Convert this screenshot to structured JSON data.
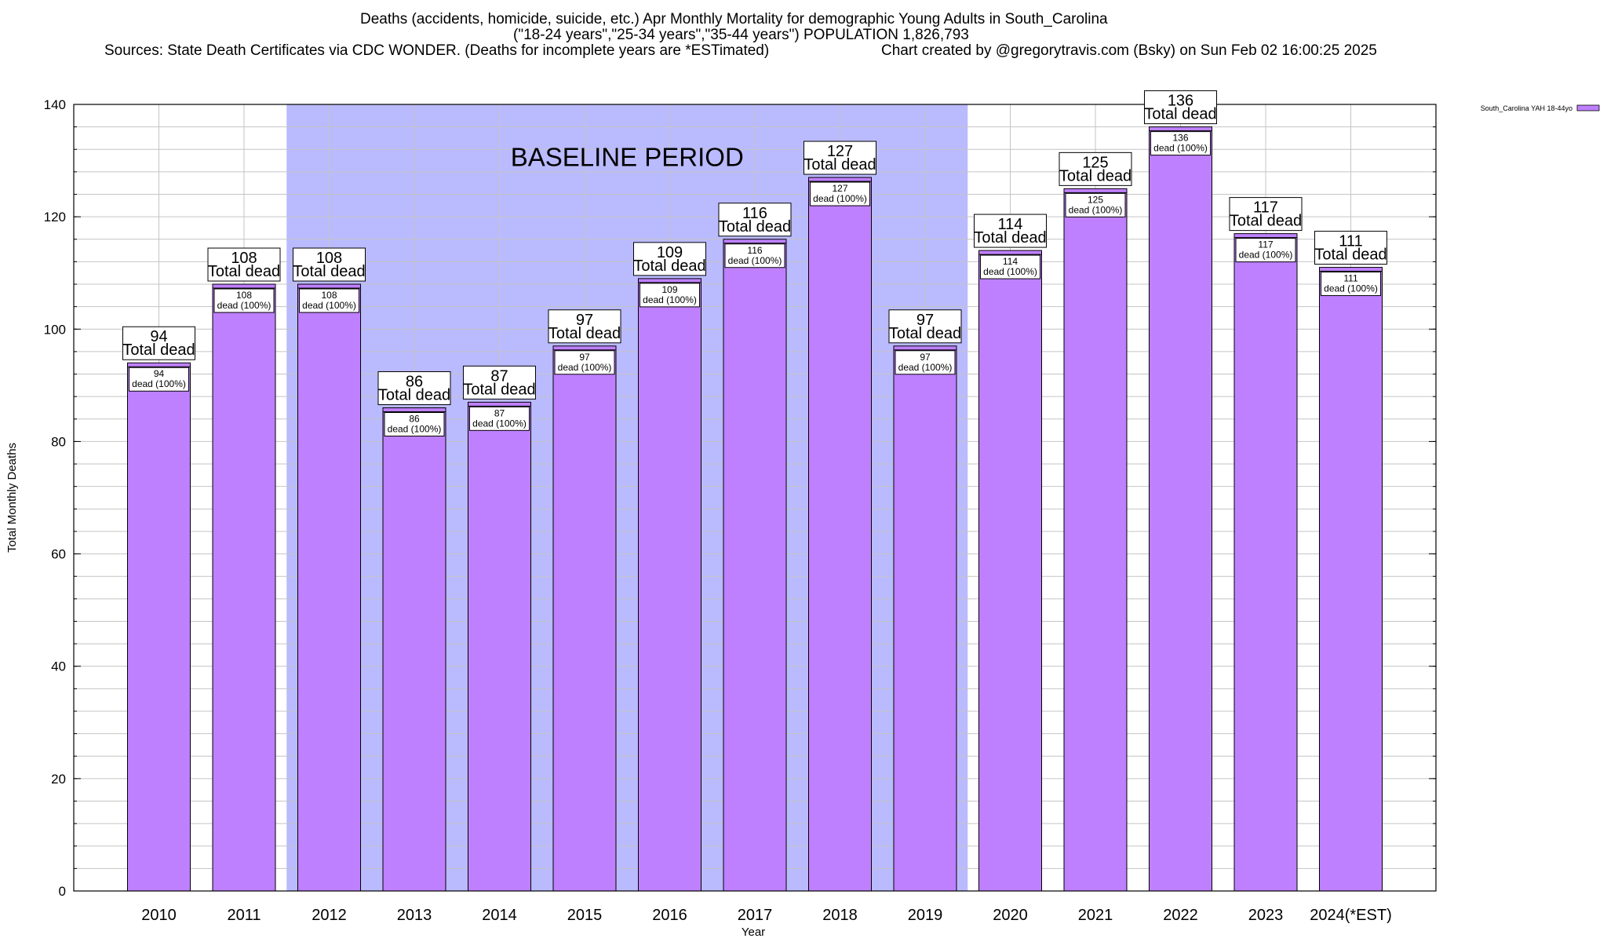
{
  "header": {
    "title_line1": "Deaths (accidents, homicide, suicide, etc.) Apr Monthly Mortality for demographic Young Adults in South_Carolina",
    "title_line2": "(\"18-24 years\",\"25-34 years\",\"35-44 years\") POPULATION 1,826,793",
    "sources": "Sources: State Death Certificates via CDC WONDER. (Deaths for incomplete years are *ESTimated)",
    "credit": "Chart created by @gregorytravis.com (Bsky) on Sun Feb 02 16:00:25 2025"
  },
  "chart_data": {
    "type": "bar",
    "xlabel": "Year",
    "ylabel": "Total Monthly Deaths",
    "ylim": [
      0,
      140
    ],
    "y_ticks": [
      0,
      20,
      40,
      60,
      80,
      100,
      120,
      140
    ],
    "y_minor_step": 4,
    "grid": true,
    "legend_position": "top-right",
    "categories": [
      "2010",
      "2011",
      "2012",
      "2013",
      "2014",
      "2015",
      "2016",
      "2017",
      "2018",
      "2019",
      "2020",
      "2021",
      "2022",
      "2023",
      "2024(*EST)"
    ],
    "series": [
      {
        "name": "South_Carolina YAH 18-44yo",
        "color": "#bf80ff",
        "values": [
          94,
          108,
          108,
          86,
          87,
          97,
          109,
          116,
          127,
          97,
          114,
          125,
          136,
          117,
          111
        ]
      }
    ],
    "total_label_suffix": "Total dead",
    "inner_label_suffix": "dead (100%)",
    "baseline_period": {
      "label": "BASELINE PERIOD",
      "start": "2012",
      "end": "2019",
      "color": "#babaff"
    }
  }
}
